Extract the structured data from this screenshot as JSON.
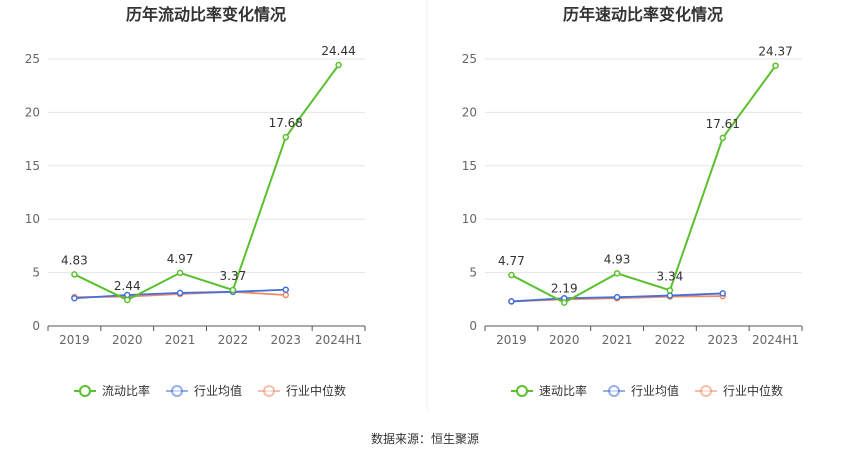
{
  "source": "数据来源：恒生聚源",
  "colors": {
    "green": "#5ac12e",
    "blue": "#4570d9",
    "orange": "#f08a67"
  },
  "chart_data": [
    {
      "type": "line",
      "title": "历年流动比率变化情况",
      "categories": [
        "2019",
        "2020",
        "2021",
        "2022",
        "2023",
        "2024H1"
      ],
      "ylim": [
        0,
        25
      ],
      "yticks": [
        "0",
        "5",
        "10",
        "15",
        "20",
        "25"
      ],
      "series": [
        {
          "name": "流动比率",
          "values": [
            4.83,
            2.44,
            4.97,
            3.37,
            17.68,
            24.44
          ],
          "labels": [
            "4.83",
            "2.44",
            "4.97",
            "3.37",
            "17.68",
            "24.44"
          ]
        },
        {
          "name": "行业均值",
          "values": [
            2.6,
            2.9,
            3.1,
            3.2,
            3.4,
            null
          ]
        },
        {
          "name": "行业中位数",
          "values": [
            2.7,
            2.75,
            3.0,
            3.2,
            2.9,
            null
          ]
        }
      ]
    },
    {
      "type": "line",
      "title": "历年速动比率变化情况",
      "categories": [
        "2019",
        "2020",
        "2021",
        "2022",
        "2023",
        "2024H1"
      ],
      "ylim": [
        0,
        25
      ],
      "yticks": [
        "0",
        "5",
        "10",
        "15",
        "20",
        "25"
      ],
      "series": [
        {
          "name": "速动比率",
          "values": [
            4.77,
            2.19,
            4.93,
            3.34,
            17.61,
            24.37
          ],
          "labels": [
            "4.77",
            "2.19",
            "4.93",
            "3.34",
            "17.61",
            "24.37"
          ]
        },
        {
          "name": "行业均值",
          "values": [
            2.3,
            2.6,
            2.7,
            2.85,
            3.05,
            null
          ]
        },
        {
          "name": "行业中位数",
          "values": [
            2.3,
            2.5,
            2.6,
            2.75,
            2.8,
            null
          ]
        }
      ]
    }
  ]
}
